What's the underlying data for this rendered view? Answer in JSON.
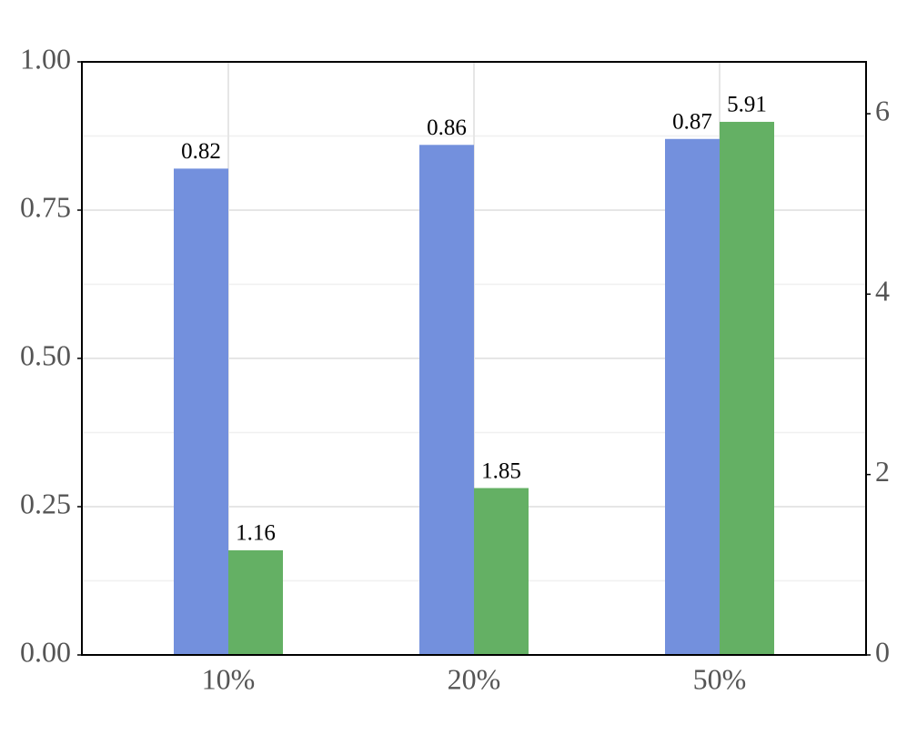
{
  "chart_data": {
    "type": "bar",
    "categories": [
      "10%",
      "20%",
      "50%"
    ],
    "series": [
      {
        "color": "#7390dd",
        "values": [
          0.82,
          0.86,
          0.87
        ]
      },
      {
        "color": "#64b064",
        "values": [
          1.16,
          1.85,
          5.91
        ],
        "axis": "y2"
      }
    ],
    "ylim": [
      0,
      1
    ],
    "yticks": [
      {
        "value": 0,
        "label": "0.00"
      },
      {
        "value": 0.25,
        "label": "0.25"
      },
      {
        "value": 0.5,
        "label": "0.50"
      },
      {
        "value": 0.75,
        "label": "0.75"
      },
      {
        "value": 1,
        "label": "1.00"
      }
    ],
    "y2lim": [
      0,
      6.575
    ],
    "y2ticks": [
      0,
      2,
      4,
      6
    ],
    "grid": true
  }
}
